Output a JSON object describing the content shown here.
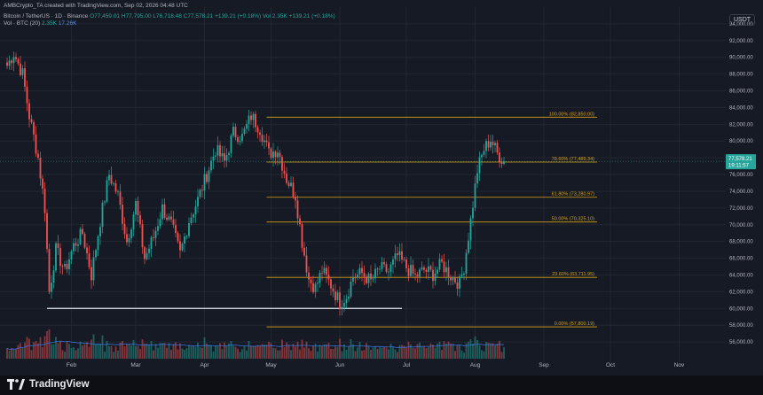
{
  "header": {
    "credit": "AMBCrypto_TA created with TradingView.com, Sep 02, 2026 04:48 UTC",
    "symbol": "Bitcoin / TetherUS · 1D · Binance",
    "open": "O77,459.01",
    "high": "H77,795.00",
    "low": "L76,718.48",
    "close": "C77,578.21",
    "change": "+139.21 (+0.18%)",
    "vol_inline": "Vol 2.35K",
    "vol_change": "+139.21 (+0.18%)",
    "vol_label": "Vol · BTC (20)",
    "vol_value": "2.35K",
    "vol_ma": "17.26K"
  },
  "currency": "USDT",
  "price_tag": {
    "value": "77,578.21",
    "countdown": "19:11:57"
  },
  "colors": {
    "bull": "#26a69a",
    "bear": "#ef5350",
    "fib": "#d4a017",
    "bg": "#161a25",
    "vol_ma": "#3b6fd6"
  },
  "icons": {
    "brand": "tradingview-logo-icon"
  },
  "footer": {
    "brand": "TradingView"
  },
  "chart_data": {
    "type": "candlestick",
    "title": "",
    "xlabel": "",
    "ylabel": "",
    "ylim": [
      54000,
      96000
    ],
    "grid": true,
    "y_axis_side": "right",
    "yticks": [
      "56,000.00",
      "58,000.00",
      "60,000.00",
      "62,000.00",
      "64,000.00",
      "66,000.00",
      "68,000.00",
      "70,000.00",
      "72,000.00",
      "74,000.00",
      "76,000.00",
      "78,000.00",
      "80,000.00",
      "82,000.00",
      "84,000.00",
      "86,000.00",
      "88,000.00",
      "90,000.00",
      "92,000.00",
      "94,000.00"
    ],
    "x_labels": [
      {
        "label": "Feb",
        "day": 29
      },
      {
        "label": "Mar",
        "day": 58
      },
      {
        "label": "Apr",
        "day": 89
      },
      {
        "label": "May",
        "day": 119
      },
      {
        "label": "Jun",
        "day": 150
      },
      {
        "label": "Jul",
        "day": 180
      },
      {
        "label": "Aug",
        "day": 211
      },
      {
        "label": "Sep",
        "day": 242
      },
      {
        "label": "Oct",
        "day": 272
      },
      {
        "label": "Nov",
        "day": 303
      }
    ],
    "anchors": [
      [
        0,
        89000
      ],
      [
        3,
        90500
      ],
      [
        7,
        88000
      ],
      [
        10,
        83000
      ],
      [
        14,
        78000
      ],
      [
        17,
        72000
      ],
      [
        19,
        62000
      ],
      [
        22,
        67000
      ],
      [
        26,
        64500
      ],
      [
        30,
        67500
      ],
      [
        34,
        69000
      ],
      [
        38,
        64000
      ],
      [
        42,
        70500
      ],
      [
        46,
        76000
      ],
      [
        50,
        73500
      ],
      [
        54,
        68000
      ],
      [
        58,
        72500
      ],
      [
        62,
        66000
      ],
      [
        66,
        68500
      ],
      [
        70,
        72000
      ],
      [
        74,
        70000
      ],
      [
        78,
        66500
      ],
      [
        82,
        70500
      ],
      [
        86,
        73000
      ],
      [
        90,
        76000
      ],
      [
        94,
        79000
      ],
      [
        98,
        77500
      ],
      [
        102,
        81000
      ],
      [
        106,
        80500
      ],
      [
        110,
        83000
      ],
      [
        114,
        81500
      ],
      [
        118,
        78500
      ],
      [
        122,
        79000
      ],
      [
        126,
        75500
      ],
      [
        130,
        73500
      ],
      [
        133,
        68000
      ],
      [
        136,
        63500
      ],
      [
        139,
        62500
      ],
      [
        142,
        64500
      ],
      [
        146,
        62800
      ],
      [
        150,
        60700
      ],
      [
        153,
        61500
      ],
      [
        156,
        63800
      ],
      [
        160,
        64200
      ],
      [
        164,
        63200
      ],
      [
        168,
        64800
      ],
      [
        172,
        64400
      ],
      [
        176,
        66300
      ],
      [
        180,
        64900
      ],
      [
        184,
        63800
      ],
      [
        188,
        64600
      ],
      [
        192,
        64100
      ],
      [
        196,
        65300
      ],
      [
        200,
        63900
      ],
      [
        204,
        63000
      ],
      [
        206,
        65000
      ],
      [
        209,
        70500
      ],
      [
        212,
        76500
      ],
      [
        215,
        79000
      ],
      [
        218,
        80200
      ],
      [
        221,
        78500
      ],
      [
        224,
        77578
      ]
    ],
    "volume_ma_shown": true,
    "fib_levels": [
      {
        "label": "100.00% (82,850.00)",
        "price": 82850
      },
      {
        "label": "78.60% (77,489.34)",
        "price": 77489.34
      },
      {
        "label": "61.80% (73,280.97)",
        "price": 73280.97
      },
      {
        "label": "50.00% (70,325.10)",
        "price": 70325.1
      },
      {
        "label": "23.60% (63,711.95)",
        "price": 63711.95
      },
      {
        "label": "0.00% (57,800.19)",
        "price": 57800.19
      }
    ],
    "fib_start_day": 117,
    "fib_end_day": 266,
    "support_line": {
      "price": 60000,
      "start_day": 18,
      "end_day": 178
    }
  }
}
